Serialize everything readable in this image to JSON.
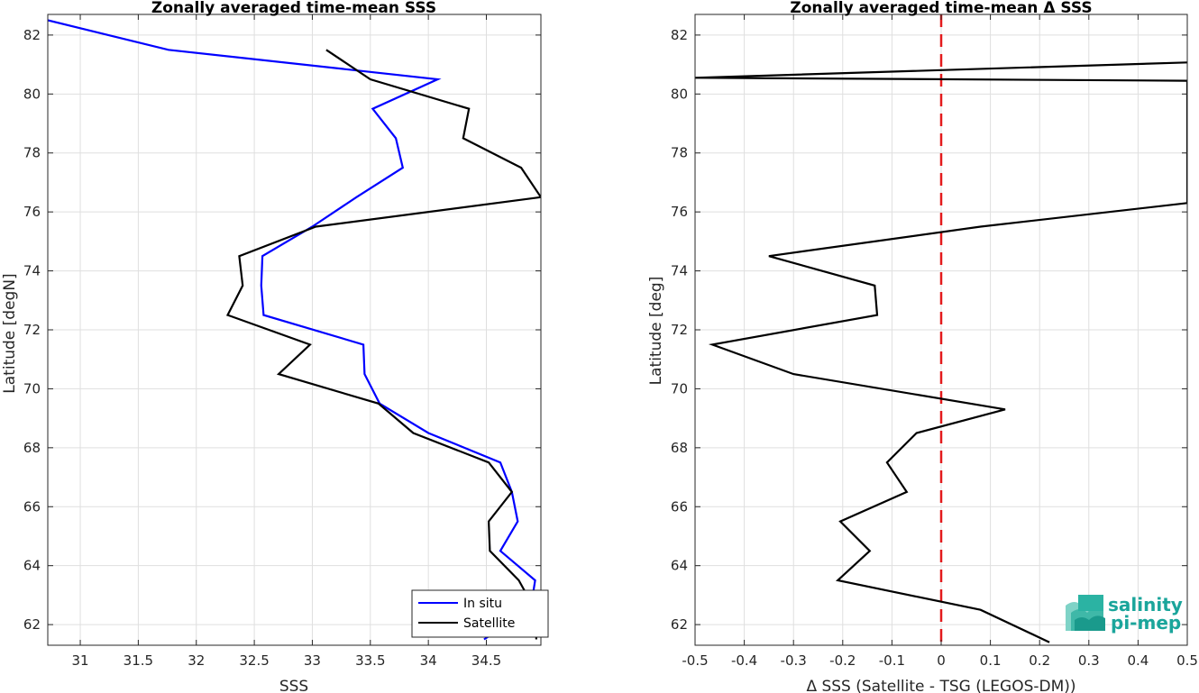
{
  "chart_data": [
    {
      "type": "line",
      "title": "Zonally averaged time-mean SSS",
      "xlabel": "SSS",
      "ylabel": "Latitude [degN]",
      "xlim": [
        30.72,
        34.97
      ],
      "ylim": [
        61.3,
        82.7
      ],
      "xticks": [
        31,
        31.5,
        32,
        32.5,
        33,
        33.5,
        34,
        34.5
      ],
      "yticks": [
        62,
        64,
        66,
        68,
        70,
        72,
        74,
        76,
        78,
        80,
        82
      ],
      "grid": true,
      "legend": {
        "placement": "bottom-right",
        "entries": [
          "In situ",
          "Satellite"
        ]
      },
      "series": [
        {
          "name": "In situ",
          "color": "#0000ff",
          "x": [
            30.72,
            31.76,
            34.08,
            33.52,
            33.72,
            33.78,
            33.38,
            33.0,
            32.57,
            32.56,
            32.58,
            33.44,
            33.45,
            33.58,
            34.0,
            34.62,
            34.72,
            34.77,
            34.62,
            34.92,
            34.88,
            34.48
          ],
          "y": [
            82.5,
            81.5,
            80.5,
            79.5,
            78.5,
            77.5,
            76.5,
            75.5,
            74.5,
            73.5,
            72.5,
            71.5,
            70.5,
            69.5,
            68.5,
            67.5,
            66.5,
            65.5,
            64.5,
            63.5,
            62.5,
            61.5
          ]
        },
        {
          "name": "Satellite",
          "color": "#000000",
          "x": [
            33.12,
            33.5,
            34.35,
            34.3,
            34.8,
            34.97,
            33.03,
            32.37,
            32.4,
            32.27,
            32.98,
            32.71,
            33.57,
            33.87,
            34.52,
            34.72,
            34.52,
            34.53,
            34.78,
            34.92,
            34.93
          ],
          "y": [
            81.5,
            80.5,
            79.5,
            78.5,
            77.5,
            76.5,
            75.5,
            74.5,
            73.5,
            72.5,
            71.5,
            70.5,
            69.5,
            68.5,
            67.5,
            66.5,
            65.5,
            64.5,
            63.5,
            62.5,
            61.5
          ]
        }
      ]
    },
    {
      "type": "line",
      "title": "Zonally averaged time-mean Δ SSS",
      "xlabel": "Δ SSS (Satellite - TSG (LEGOS-DM))",
      "ylabel": "Latitude [deg]",
      "xlim": [
        -0.5,
        0.5
      ],
      "ylim": [
        61.3,
        82.7
      ],
      "xticks": [
        -0.5,
        -0.4,
        -0.3,
        -0.2,
        -0.1,
        0,
        0.1,
        0.2,
        0.3,
        0.4,
        0.5
      ],
      "yticks": [
        62,
        64,
        66,
        68,
        70,
        72,
        74,
        76,
        78,
        80,
        82
      ],
      "grid": true,
      "reference_line": {
        "x": 0,
        "color": "#e31a1c",
        "style": "dashed"
      },
      "series": [
        {
          "name": "",
          "color": "#000000",
          "x": [
            0.5,
            -0.5,
            0.5,
            0.5,
            0.5,
            0.08,
            -0.35,
            -0.135,
            -0.13,
            -0.465,
            -0.3,
            0.13,
            -0.05,
            -0.11,
            -0.07,
            -0.205,
            -0.145,
            -0.21,
            0.08,
            0.22
          ],
          "y": [
            81.07,
            80.55,
            80.45,
            79.73,
            76.3,
            75.5,
            74.5,
            73.5,
            72.5,
            71.5,
            70.5,
            69.3,
            68.5,
            67.5,
            66.5,
            65.5,
            64.5,
            63.5,
            62.5,
            61.4
          ]
        }
      ]
    }
  ],
  "logo": {
    "line1": "salinity",
    "line2": "pi-mep"
  }
}
